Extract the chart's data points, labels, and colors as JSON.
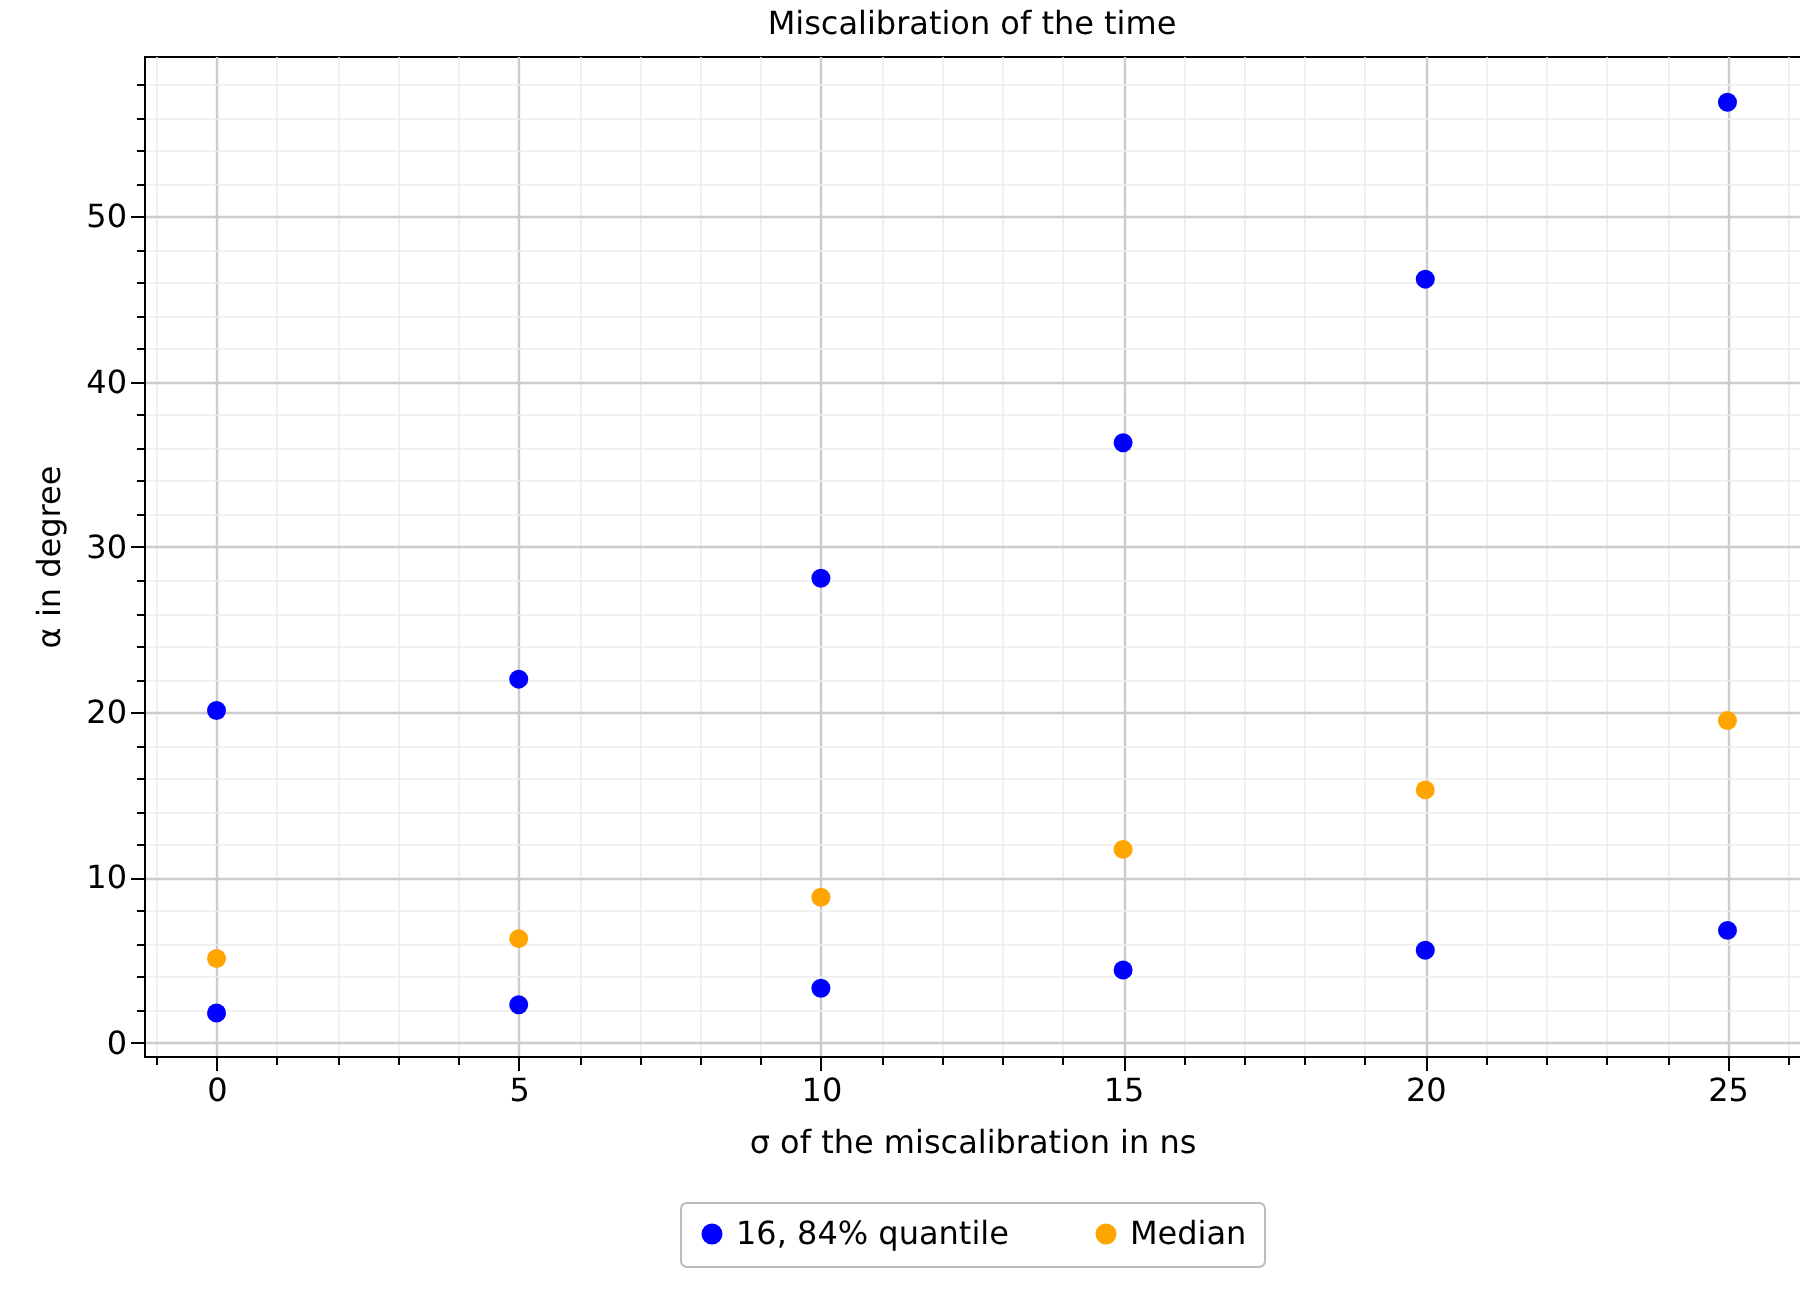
{
  "chart_data": {
    "type": "scatter",
    "title": "Miscalibration of the time",
    "xlabel": "σ of the miscalibration in ns",
    "ylabel": "α in degree",
    "series": [
      {
        "name": "16, 84% quantile",
        "color": "#0000ff",
        "x": [
          0,
          0,
          5,
          5,
          10,
          10,
          15,
          15,
          20,
          20,
          25,
          25
        ],
        "values": [
          1.8,
          20.1,
          2.3,
          22.0,
          3.3,
          28.1,
          4.4,
          36.3,
          5.6,
          46.2,
          6.8,
          56.9
        ]
      },
      {
        "name": "Median",
        "color": "#ffa500",
        "x": [
          0,
          5,
          10,
          15,
          20,
          25
        ],
        "values": [
          5.1,
          6.3,
          8.8,
          11.7,
          15.3,
          19.5
        ]
      }
    ],
    "xlim": [
      -1.2,
      26.2
    ],
    "ylim": [
      -0.8,
      59.7
    ],
    "xticks": [
      {
        "value": -1,
        "label": null
      },
      0,
      {
        "value": 1,
        "label": null
      },
      {
        "value": 2,
        "label": null
      },
      {
        "value": 3,
        "label": null
      },
      {
        "value": 4,
        "label": null
      },
      5,
      {
        "value": 6,
        "label": null
      },
      {
        "value": 7,
        "label": null
      },
      {
        "value": 8,
        "label": null
      },
      {
        "value": 9,
        "label": null
      },
      10,
      {
        "value": 11,
        "label": null
      },
      {
        "value": 12,
        "label": null
      },
      {
        "value": 13,
        "label": null
      },
      {
        "value": 14,
        "label": null
      },
      15,
      {
        "value": 16,
        "label": null
      },
      {
        "value": 17,
        "label": null
      },
      {
        "value": 18,
        "label": null
      },
      {
        "value": 19,
        "label": null
      },
      20,
      {
        "value": 21,
        "label": null
      },
      {
        "value": 22,
        "label": null
      },
      {
        "value": 23,
        "label": null
      },
      {
        "value": 24,
        "label": null
      },
      25,
      {
        "value": 26,
        "label": null
      }
    ],
    "yticks": [
      0,
      {
        "value": 2,
        "label": null
      },
      {
        "value": 4,
        "label": null
      },
      {
        "value": 6,
        "label": null
      },
      {
        "value": 8,
        "label": null
      },
      10,
      {
        "value": 12,
        "label": null
      },
      {
        "value": 14,
        "label": null
      },
      {
        "value": 16,
        "label": null
      },
      {
        "value": 18,
        "label": null
      },
      20,
      {
        "value": 22,
        "label": null
      },
      {
        "value": 24,
        "label": null
      },
      {
        "value": 26,
        "label": null
      },
      {
        "value": 28,
        "label": null
      },
      30,
      {
        "value": 32,
        "label": null
      },
      {
        "value": 34,
        "label": null
      },
      {
        "value": 36,
        "label": null
      },
      {
        "value": 38,
        "label": null
      },
      40,
      {
        "value": 42,
        "label": null
      },
      {
        "value": 44,
        "label": null
      },
      {
        "value": 46,
        "label": null
      },
      {
        "value": 48,
        "label": null
      },
      50,
      {
        "value": 52,
        "label": null
      },
      {
        "value": 54,
        "label": null
      },
      {
        "value": 56,
        "label": null
      },
      {
        "value": 58,
        "label": null
      }
    ],
    "grid": true,
    "legend": "bottom",
    "marker": "circle"
  }
}
